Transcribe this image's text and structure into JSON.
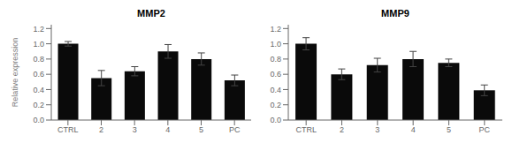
{
  "chart_data": [
    {
      "type": "bar",
      "title": "MMP2",
      "categories": [
        "CTRL",
        "2",
        "3",
        "4",
        "5",
        "PC"
      ],
      "values": [
        1.0,
        0.55,
        0.64,
        0.9,
        0.8,
        0.52
      ],
      "errors": [
        0.03,
        0.1,
        0.06,
        0.09,
        0.08,
        0.07
      ],
      "color": "#0a0a0a",
      "ylabel": "Relative expression",
      "ylim": [
        0.0,
        1.25
      ],
      "yticks": [
        {
          "value": 0,
          "label": "0.0"
        },
        0.2,
        0.4,
        0.6,
        0.8,
        {
          "value": 1,
          "label": "1.0"
        },
        1.2
      ],
      "grid": false
    },
    {
      "type": "bar",
      "title": "MMP9",
      "categories": [
        "CTRL",
        "2",
        "3",
        "4",
        "5",
        "PC"
      ],
      "values": [
        1.0,
        0.6,
        0.72,
        0.8,
        0.75,
        0.39
      ],
      "errors": [
        0.08,
        0.07,
        0.09,
        0.1,
        0.05,
        0.07
      ],
      "color": "#0a0a0a",
      "ylim": [
        0.0,
        1.25
      ],
      "yticks": [
        {
          "value": 0,
          "label": "0.0"
        },
        0.2,
        0.4,
        0.6,
        0.8,
        {
          "value": 1,
          "label": "1.0"
        },
        1.2
      ],
      "grid": false
    }
  ]
}
